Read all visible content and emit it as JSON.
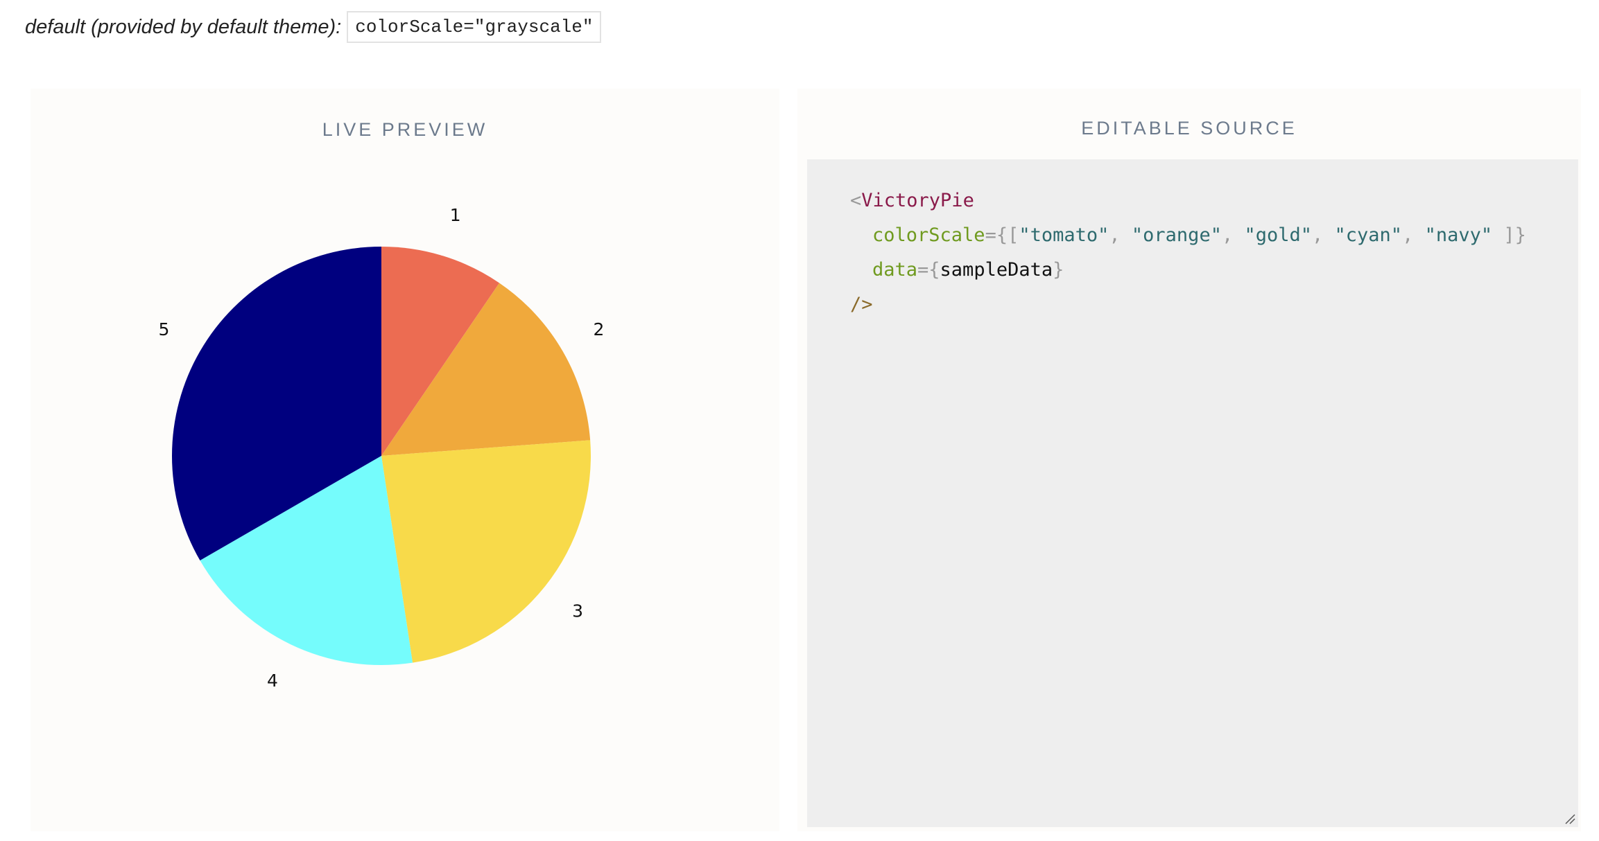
{
  "header": {
    "default_label": "default (provided by default theme):",
    "default_code": "colorScale=\"grayscale\""
  },
  "preview": {
    "title": "LIVE PREVIEW"
  },
  "source": {
    "title": "EDITABLE SOURCE",
    "tag_open": "<",
    "component": "VictoryPie",
    "color_attr": "colorScale",
    "data_attr": "data",
    "data_value": "sampleData",
    "self_close": "/>",
    "colors_str": [
      "\"tomato\"",
      "\"orange\"",
      "\"gold\"",
      "\"cyan\"",
      "\"navy\""
    ]
  },
  "chart_data": {
    "type": "pie",
    "categories": [
      "1",
      "2",
      "3",
      "4",
      "5"
    ],
    "values": [
      1,
      1.5,
      2.5,
      2,
      3.5
    ],
    "colors": [
      "#ec6c52",
      "#f0a93c",
      "#f8da4a",
      "#75fcfc",
      "#00007f"
    ]
  }
}
